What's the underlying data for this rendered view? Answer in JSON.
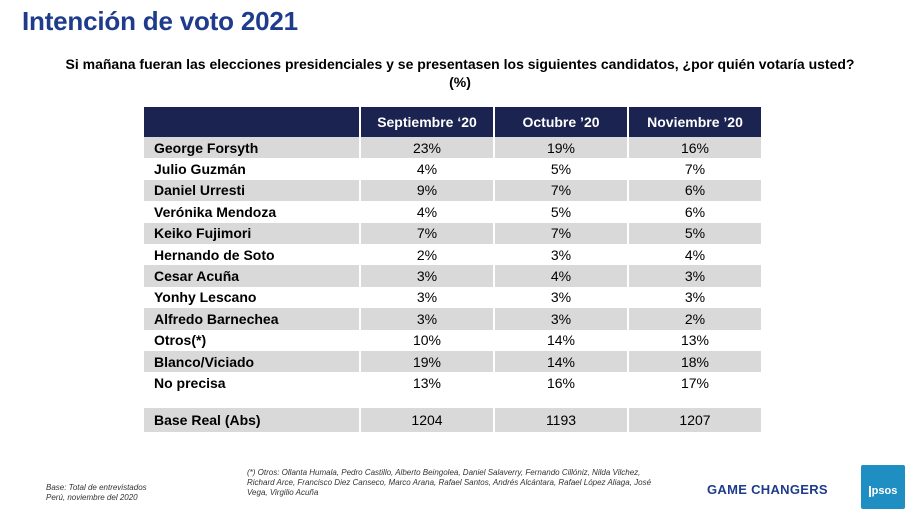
{
  "title": "Intención de voto 2021",
  "question": "Si mañana fueran las elecciones presidenciales y se presentasen los siguientes candidatos, ¿por quién votaría usted? (%)",
  "table": {
    "columns": [
      "Septiembre ‘20",
      "Octubre ’20",
      "Noviembre ’20"
    ],
    "rows": [
      {
        "name": "George Forsyth",
        "values": [
          "23%",
          "19%",
          "16%"
        ]
      },
      {
        "name": "Julio Guzmán",
        "values": [
          "4%",
          "5%",
          "7%"
        ]
      },
      {
        "name": "Daniel Urresti",
        "values": [
          "9%",
          "7%",
          "6%"
        ]
      },
      {
        "name": "Verónika Mendoza",
        "values": [
          "4%",
          "5%",
          "6%"
        ]
      },
      {
        "name": "Keiko Fujimori",
        "values": [
          "7%",
          "7%",
          "5%"
        ]
      },
      {
        "name": "Hernando de Soto",
        "values": [
          "2%",
          "3%",
          "4%"
        ]
      },
      {
        "name": "Cesar Acuña",
        "values": [
          "3%",
          "4%",
          "3%"
        ]
      },
      {
        "name": "Yonhy Lescano",
        "values": [
          "3%",
          "3%",
          "3%"
        ]
      },
      {
        "name": "Alfredo Barnechea",
        "values": [
          "3%",
          "3%",
          "2%"
        ]
      },
      {
        "name": "Otros(*)",
        "values": [
          "10%",
          "14%",
          "13%"
        ]
      },
      {
        "name": "Blanco/Viciado",
        "values": [
          "19%",
          "14%",
          "18%"
        ]
      },
      {
        "name": "No precisa",
        "values": [
          "13%",
          "16%",
          "17%"
        ]
      }
    ],
    "base": {
      "name": "Base Real (Abs)",
      "values": [
        "1204",
        "1193",
        "1207"
      ]
    }
  },
  "footer": {
    "base_line1": "Base: Total de entrevistados",
    "base_line2": "Perú, noviembre del 2020",
    "others_note": "(*) Otros: Ollanta Humala, Pedro Castillo, Alberto Beingolea, Daniel Salaverry, Fernando Cillóniz, Nilda Vilchez, Richard Arce, Francisco Diez Canseco, Marco Arana, Rafael Santos, Andrés Alcántara, Rafael López Aliaga, José Vega, Virgilio Acuña",
    "tagline": "GAME CHANGERS",
    "logo_text": "Ipsos"
  },
  "colors": {
    "title": "#1f3c8c",
    "header_bg": "#1b2350",
    "row_shade": "#d9d9d9",
    "logo_bg": "#1f8ec2"
  }
}
